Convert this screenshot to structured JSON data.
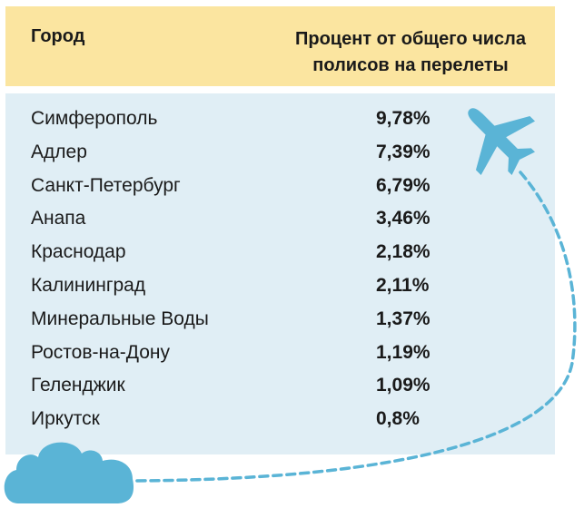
{
  "chart_data": {
    "type": "table",
    "columns": [
      "Город",
      "Процент от общего числа полисов на перелеты"
    ],
    "header": {
      "city": "Город",
      "pct_line1": "Процент от общего числа",
      "pct_line2": "полисов на перелеты"
    },
    "rows": [
      {
        "city": "Симферополь",
        "value": 9.78,
        "label": "9,78%"
      },
      {
        "city": "Адлер",
        "value": 7.39,
        "label": "7,39%"
      },
      {
        "city": "Санкт-Петербург",
        "value": 6.79,
        "label": "6,79%"
      },
      {
        "city": "Анапа",
        "value": 3.46,
        "label": "3,46%"
      },
      {
        "city": "Краснодар",
        "value": 2.18,
        "label": "2,18%"
      },
      {
        "city": "Калининград",
        "value": 2.11,
        "label": "2,11%"
      },
      {
        "city": "Минеральные Воды",
        "value": 1.37,
        "label": "1,37%"
      },
      {
        "city": "Ростов-на-Дону",
        "value": 1.19,
        "label": "1,19%"
      },
      {
        "city": "Геленджик",
        "value": 1.09,
        "label": "1,09%"
      },
      {
        "city": "Иркутск",
        "value": 0.8,
        "label": "0,8%"
      }
    ]
  },
  "decorations": {
    "icons": [
      "airplane-icon",
      "cloud-icon"
    ],
    "colors": {
      "header_bg": "#fbe5a0",
      "body_bg": "#e0eef5",
      "accent": "#5ab4d6"
    }
  }
}
